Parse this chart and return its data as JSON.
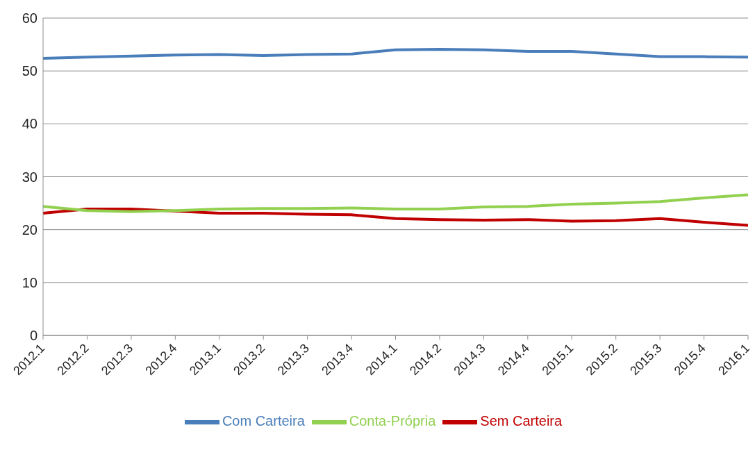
{
  "chart_data": {
    "type": "line",
    "categories": [
      "2012.1",
      "2012.2",
      "2012.3",
      "2012.4",
      "2013.1",
      "2013.2",
      "2013.3",
      "2013.4",
      "2014.1",
      "2014.2",
      "2014.3",
      "2014.4",
      "2015.1",
      "2015.2",
      "2015.3",
      "2015.4",
      "2016.1"
    ],
    "series": [
      {
        "name": "Com Carteira",
        "color": "#4a7ebb",
        "values": [
          52.4,
          52.6,
          52.8,
          53.0,
          53.1,
          52.9,
          53.1,
          53.2,
          54.0,
          54.1,
          54.0,
          53.7,
          53.7,
          53.2,
          52.7,
          52.7,
          52.6
        ]
      },
      {
        "name": "Sem Carteira",
        "color": "#c00000",
        "values": [
          23.1,
          23.9,
          23.9,
          23.5,
          23.1,
          23.1,
          22.9,
          22.8,
          22.1,
          21.9,
          21.8,
          21.9,
          21.6,
          21.7,
          22.1,
          21.4,
          20.8
        ]
      },
      {
        "name": "Conta-Própria",
        "color": "#92d050",
        "values": [
          24.4,
          23.6,
          23.4,
          23.6,
          23.9,
          24.0,
          24.0,
          24.1,
          23.9,
          23.9,
          24.3,
          24.4,
          24.8,
          25.0,
          25.3,
          26.0,
          26.6
        ]
      }
    ],
    "ylim": [
      0,
      60
    ],
    "yticks": [
      0,
      10,
      20,
      30,
      40,
      50,
      60
    ],
    "grid": "y",
    "legend": "bottom",
    "marker": "none",
    "line_style": "solid"
  }
}
